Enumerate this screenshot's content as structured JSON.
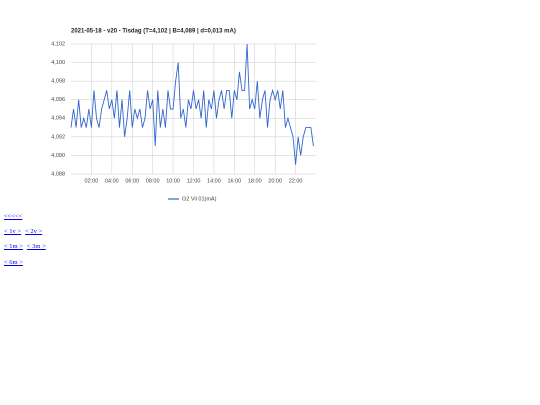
{
  "chart_data": {
    "type": "line",
    "title": "2021-05-18 - v20 - Tisdag (T=4,102 | B=4,089 | d=0,013 mA)",
    "x": [
      0,
      0.25,
      0.5,
      0.75,
      1,
      1.25,
      1.5,
      1.75,
      2,
      2.25,
      2.5,
      2.75,
      3,
      3.25,
      3.5,
      3.75,
      4,
      4.25,
      4.5,
      4.75,
      5,
      5.25,
      5.5,
      5.75,
      6,
      6.25,
      6.5,
      6.75,
      7,
      7.25,
      7.5,
      7.75,
      8,
      8.25,
      8.5,
      8.75,
      9,
      9.25,
      9.5,
      9.75,
      10,
      10.25,
      10.5,
      10.75,
      11,
      11.25,
      11.5,
      11.75,
      12,
      12.25,
      12.5,
      12.75,
      13,
      13.25,
      13.5,
      13.75,
      14,
      14.25,
      14.5,
      14.75,
      15,
      15.25,
      15.5,
      15.75,
      16,
      16.25,
      16.5,
      16.75,
      17,
      17.25,
      17.5,
      17.75,
      18,
      18.25,
      18.5,
      18.75,
      19,
      19.25,
      19.5,
      19.75,
      20,
      20.25,
      20.5,
      20.75,
      21,
      21.25,
      21.5,
      21.75,
      22,
      22.25,
      22.5,
      22.75,
      23,
      23.25,
      23.5,
      23.75
    ],
    "series": [
      {
        "name": "G2 Vil 01(mA)",
        "color": "#3366cc",
        "values": [
          4.093,
          4.095,
          4.093,
          4.096,
          4.093,
          4.094,
          4.093,
          4.095,
          4.093,
          4.097,
          4.094,
          4.093,
          4.095,
          4.096,
          4.097,
          4.095,
          4.096,
          4.094,
          4.097,
          4.093,
          4.096,
          4.092,
          4.094,
          4.097,
          4.093,
          4.095,
          4.094,
          4.095,
          4.093,
          4.094,
          4.097,
          4.095,
          4.096,
          4.091,
          4.097,
          4.093,
          4.095,
          4.093,
          4.097,
          4.095,
          4.095,
          4.098,
          4.1,
          4.094,
          4.095,
          4.093,
          4.096,
          4.095,
          4.097,
          4.095,
          4.096,
          4.094,
          4.097,
          4.093,
          4.096,
          4.095,
          4.097,
          4.094,
          4.096,
          4.097,
          4.095,
          4.097,
          4.097,
          4.094,
          4.097,
          4.096,
          4.099,
          4.097,
          4.097,
          4.102,
          4.095,
          4.096,
          4.095,
          4.098,
          4.094,
          4.096,
          4.097,
          4.093,
          4.096,
          4.097,
          4.096,
          4.097,
          4.095,
          4.097,
          4.093,
          4.094,
          4.093,
          4.092,
          4.089,
          4.092,
          4.09,
          4.092,
          4.093,
          4.093,
          4.093,
          4.091
        ]
      }
    ],
    "xlim": [
      0,
      24
    ],
    "xticks": [
      {
        "value": 2,
        "label": "02:00"
      },
      {
        "value": 4,
        "label": "04:00"
      },
      {
        "value": 6,
        "label": "06:00"
      },
      {
        "value": 8,
        "label": "08:00"
      },
      {
        "value": 10,
        "label": "10:00"
      },
      {
        "value": 12,
        "label": "12:00"
      },
      {
        "value": 14,
        "label": "14:00"
      },
      {
        "value": 16,
        "label": "16:00"
      },
      {
        "value": 18,
        "label": "18:00"
      },
      {
        "value": 20,
        "label": "20:00"
      },
      {
        "value": 22,
        "label": "22:00"
      }
    ],
    "ylim": [
      4.088,
      4.102
    ],
    "yticks": [
      {
        "value": 4.088,
        "label": "4,088"
      },
      {
        "value": 4.09,
        "label": "4,090"
      },
      {
        "value": 4.092,
        "label": "4,092"
      },
      {
        "value": 4.094,
        "label": "4,094"
      },
      {
        "value": 4.096,
        "label": "4,096"
      },
      {
        "value": 4.098,
        "label": "4,098"
      },
      {
        "value": 4.1,
        "label": "4,100"
      },
      {
        "value": 4.102,
        "label": "4,102"
      }
    ],
    "grid": true,
    "legend": "bottom"
  },
  "links": [
    [
      "<<<<<"
    ],
    [
      "< 1v >",
      "< 2v >"
    ],
    [
      "< 1m >",
      "< 3m >"
    ],
    [
      "< 6m >"
    ]
  ]
}
